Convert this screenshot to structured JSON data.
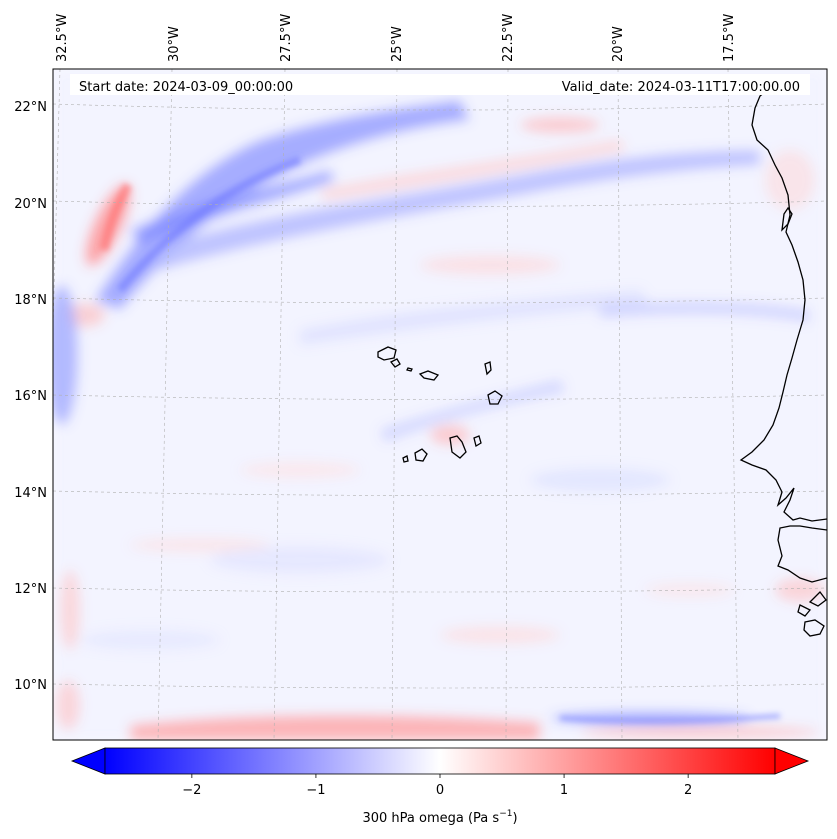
{
  "header": {
    "start_date": "Start date: 2024-03-09_00:00:00",
    "valid_date": "Valid_date: 2024-03-11T17:00:00.00"
  },
  "map": {
    "variable": "300 hPa omega",
    "units": "Pa s",
    "units_exponent": "−1",
    "lon_labels": [
      "32.5°W",
      "30°W",
      "27.5°W",
      "25°W",
      "22.5°W",
      "20°W",
      "17.5°W"
    ],
    "lat_labels": [
      "22°N",
      "20°N",
      "18°N",
      "16°N",
      "14°N",
      "12°N",
      "10°N"
    ],
    "positive_color": "#ff0000",
    "negative_color": "#0000ff",
    "neutral_color": "#ffffff",
    "coastline_color": "#000000",
    "gridline_color": "#b0b0b0"
  },
  "colorbar": {
    "min": -2.7,
    "max": 2.7,
    "tick_values": [
      -2,
      -1,
      0,
      1,
      2
    ],
    "tick_labels": [
      "−2",
      "−1",
      "0",
      "1",
      "2"
    ],
    "extend": "both"
  }
}
